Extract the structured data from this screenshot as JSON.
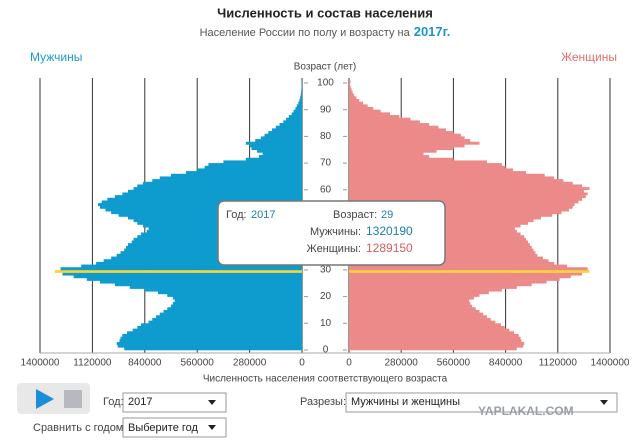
{
  "chart_data": {
    "type": "pyramid",
    "title": "Численность и состав населения",
    "subtitle": "Население России по полу и возрасту на",
    "subtitle_year": "2017г.",
    "y_label": "Возраст (лет)",
    "x_label": "Численность населения соответствующего возраста",
    "categories": [
      0,
      1,
      2,
      3,
      4,
      5,
      6,
      7,
      8,
      9,
      10,
      11,
      12,
      13,
      14,
      15,
      16,
      17,
      18,
      19,
      20,
      21,
      22,
      23,
      24,
      25,
      26,
      27,
      28,
      29,
      30,
      31,
      32,
      33,
      34,
      35,
      36,
      37,
      38,
      39,
      40,
      41,
      42,
      43,
      44,
      45,
      46,
      47,
      48,
      49,
      50,
      51,
      52,
      53,
      54,
      55,
      56,
      57,
      58,
      59,
      60,
      61,
      62,
      63,
      64,
      65,
      66,
      67,
      68,
      69,
      70,
      71,
      72,
      73,
      74,
      75,
      76,
      77,
      78,
      79,
      80,
      81,
      82,
      83,
      84,
      85,
      86,
      87,
      88,
      89,
      90,
      91,
      92,
      93,
      94,
      95,
      96,
      97,
      98,
      99,
      100
    ],
    "ylim": [
      0,
      100
    ],
    "yticks": [
      0,
      10,
      20,
      30,
      40,
      50,
      60,
      70,
      80,
      90,
      100
    ],
    "xlim": [
      0,
      1400000
    ],
    "xticks": [
      0,
      280000,
      560000,
      840000,
      1120000,
      1400000
    ],
    "grid": true,
    "highlight_color": "#f7d43c",
    "series": [
      {
        "name": "Мужчины",
        "color": "#0e9bcd",
        "side": "left",
        "values": [
          950000,
          985000,
          990000,
          975000,
          970000,
          960000,
          935000,
          905000,
          880000,
          860000,
          820000,
          800000,
          780000,
          760000,
          740000,
          720000,
          700000,
          690000,
          680000,
          690000,
          720000,
          770000,
          840000,
          920000,
          1000000,
          1080000,
          1150000,
          1220000,
          1280000,
          1320190,
          1290000,
          1180000,
          1100000,
          1060000,
          1020000,
          990000,
          970000,
          950000,
          940000,
          930000,
          910000,
          900000,
          880000,
          860000,
          830000,
          820000,
          850000,
          880000,
          900000,
          930000,
          980000,
          1020000,
          1050000,
          1080000,
          1090000,
          1070000,
          1040000,
          1000000,
          960000,
          930000,
          900000,
          880000,
          850000,
          800000,
          760000,
          700000,
          620000,
          560000,
          520000,
          500000,
          420000,
          300000,
          230000,
          210000,
          240000,
          270000,
          280000,
          300000,
          250000,
          220000,
          200000,
          180000,
          160000,
          140000,
          120000,
          100000,
          85000,
          70000,
          55000,
          45000,
          35000,
          28000,
          20000,
          14000,
          10000,
          7000,
          5000,
          3500,
          2500,
          1800,
          3000
        ]
      },
      {
        "name": "Женщины",
        "color": "#ec8a8a",
        "side": "right",
        "values": [
          900000,
          935000,
          940000,
          925000,
          920000,
          910000,
          885000,
          860000,
          835000,
          815000,
          785000,
          760000,
          740000,
          720000,
          700000,
          680000,
          660000,
          650000,
          645000,
          670000,
          700000,
          750000,
          820000,
          900000,
          980000,
          1060000,
          1130000,
          1190000,
          1250000,
          1289150,
          1280000,
          1170000,
          1100000,
          1070000,
          1040000,
          1010000,
          1000000,
          990000,
          980000,
          970000,
          960000,
          950000,
          940000,
          920000,
          900000,
          890000,
          920000,
          960000,
          990000,
          1030000,
          1090000,
          1140000,
          1180000,
          1200000,
          1210000,
          1230000,
          1250000,
          1270000,
          1280000,
          1260000,
          1290000,
          1250000,
          1200000,
          1150000,
          1100000,
          1050000,
          950000,
          880000,
          840000,
          820000,
          740000,
          560000,
          430000,
          400000,
          470000,
          560000,
          620000,
          700000,
          650000,
          620000,
          600000,
          560000,
          520000,
          480000,
          430000,
          380000,
          330000,
          270000,
          220000,
          170000,
          130000,
          100000,
          75000,
          55000,
          40000,
          28000,
          20000,
          14000,
          9000,
          6000,
          8000
        ]
      }
    ],
    "tooltip": {
      "year_label": "Год:",
      "year": "2017",
      "age_label": "Возраст:",
      "age": 29,
      "men_label": "Мужчины:",
      "women_label": "Женщины:"
    }
  },
  "controls": {
    "year_label": "Год:",
    "year_value": "2017",
    "sections_label": "Разрезы:",
    "sections_value": "Мужчины и женщины",
    "compare_label": "Сравнить с годом:",
    "compare_value": "Выберите год",
    "watermark": "YAPLAKAL.COM"
  }
}
